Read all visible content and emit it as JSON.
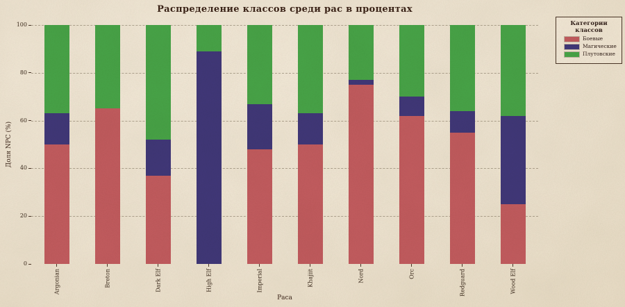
{
  "chart_data": {
    "type": "bar",
    "stacked": true,
    "title": "Распределение классов среди рас в процентах",
    "xlabel": "Раса",
    "ylabel": "Доля NPC (%)",
    "ylim": [
      0,
      100
    ],
    "yticks": [
      0,
      20,
      40,
      60,
      80,
      100
    ],
    "grid": "horizontal-dashed",
    "categories": [
      "Argonian",
      "Breton",
      "Dark Elf",
      "High Elf",
      "Imperial",
      "Khajiit",
      "Nord",
      "Orc",
      "Redguard",
      "Wood Elf"
    ],
    "series": [
      {
        "name": "Боевые",
        "color": "#c15b5e",
        "values": [
          50,
          65,
          37,
          0,
          48,
          50,
          75,
          62,
          55,
          25
        ]
      },
      {
        "name": "Магические",
        "color": "#403778",
        "values": [
          13,
          0,
          15,
          89,
          19,
          13,
          2,
          8,
          9,
          37
        ]
      },
      {
        "name": "Плутовские",
        "color": "#47a347",
        "values": [
          37,
          35,
          48,
          11,
          33,
          37,
          23,
          30,
          36,
          38
        ]
      }
    ],
    "legend": {
      "title": "Категории классов",
      "position": "upper right"
    }
  },
  "colors": {
    "background": "#ece2cf",
    "text": "#3a2619",
    "grid": "#7a6e58",
    "combat": "#c15b5e",
    "magic": "#403778",
    "rogue": "#47a347"
  }
}
